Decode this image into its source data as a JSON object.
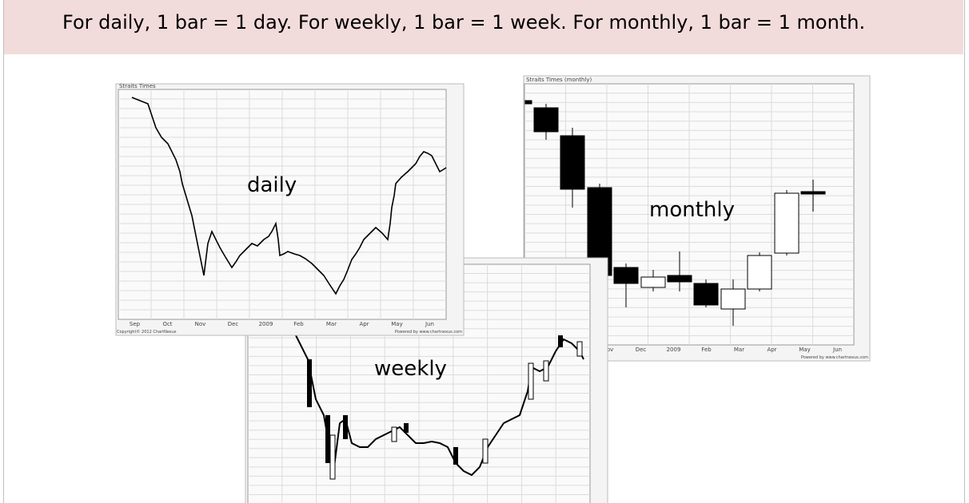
{
  "header": {
    "text": "For daily, 1 bar = 1 day. For weekly, 1 bar = 1 week. For monthly, 1 bar = 1 month."
  },
  "charts": {
    "daily": {
      "label": "daily",
      "source": "Straits Times",
      "x_labels": [
        "Sep",
        "Oct",
        "Nov",
        "Dec",
        "2009",
        "Feb",
        "Mar",
        "Apr",
        "May",
        "Jun"
      ],
      "footer_left": "Copyright© 2012 ChartNexus",
      "footer_right": "Powered by www.chartnexus.com"
    },
    "weekly": {
      "label": "weekly"
    },
    "monthly": {
      "label": "monthly",
      "source": "Straits Times (monthly)",
      "x_labels": [
        "Nov",
        "Dec",
        "2009",
        "Feb",
        "Mar",
        "Apr",
        "May",
        "Jun"
      ],
      "footer_right": "Powered by www.chartnexus.com"
    }
  }
}
